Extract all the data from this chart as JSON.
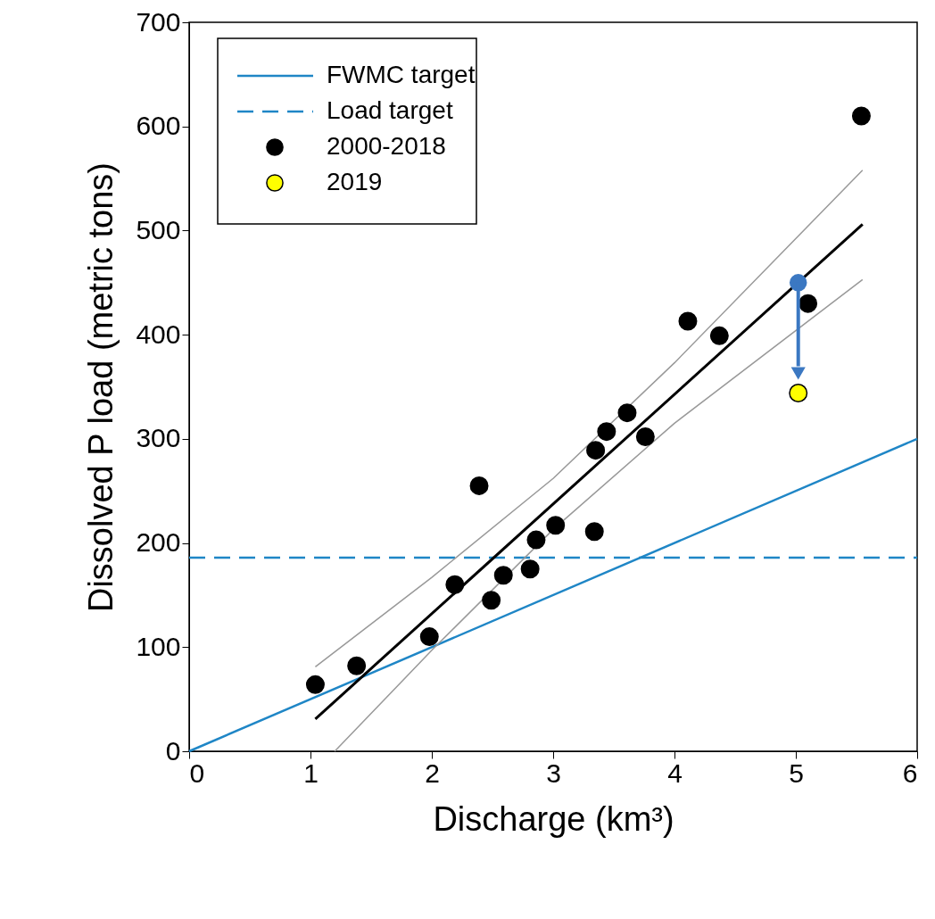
{
  "chart_data": {
    "type": "scatter",
    "xlabel": "Discharge (km³)",
    "ylabel": "Dissolved P load (metric tons)",
    "xlim": [
      0,
      6
    ],
    "ylim": [
      0,
      700
    ],
    "xticks": [
      0,
      1,
      2,
      3,
      4,
      5,
      6
    ],
    "yticks": [
      0,
      100,
      200,
      300,
      400,
      500,
      600,
      700
    ],
    "grid": false,
    "legend": "top left",
    "series": [
      {
        "name": "FWMC target",
        "type": "line",
        "color": "#1f86c6",
        "line_style": "solid",
        "x": [
          0,
          6
        ],
        "values": [
          0,
          300
        ]
      },
      {
        "name": "Load target",
        "type": "line",
        "color": "#1f86c6",
        "line_style": "dashed",
        "x": [
          0,
          6
        ],
        "values": [
          186,
          186
        ]
      },
      {
        "type": "line",
        "color": "#999999",
        "line_style": "solid",
        "x": [
          1.04,
          2,
          3,
          4,
          5.55
        ],
        "values": [
          81,
          167,
          262,
          373,
          558
        ]
      },
      {
        "type": "line",
        "color": "#999999",
        "line_style": "solid",
        "x": [
          1.2,
          2,
          3,
          4,
          5.55
        ],
        "values": [
          0,
          97,
          213,
          315,
          453
        ]
      },
      {
        "type": "line",
        "color": "#000000",
        "line_style": "solid",
        "x": [
          1.04,
          5.55
        ],
        "values": [
          31,
          506
        ]
      },
      {
        "name": "2000-2018",
        "marker": "circle",
        "color": "#000000",
        "x": [
          1.04,
          1.38,
          1.98,
          2.19,
          2.39,
          2.49,
          2.59,
          2.81,
          2.86,
          3.02,
          3.34,
          3.35,
          3.44,
          3.61,
          3.76,
          4.11,
          4.37,
          5.1,
          5.54
        ],
        "values": [
          64,
          82,
          110,
          160,
          255,
          145,
          169,
          175,
          203,
          217,
          211,
          289,
          307,
          325,
          302,
          413,
          399,
          430,
          610
        ]
      },
      {
        "marker": "circle",
        "color": "#3b78c2",
        "x": [
          5.02
        ],
        "values": [
          450
        ]
      },
      {
        "name": "2019",
        "marker": "circle",
        "color": "#ffff00",
        "x": [
          5.02
        ],
        "values": [
          344
        ]
      }
    ]
  }
}
